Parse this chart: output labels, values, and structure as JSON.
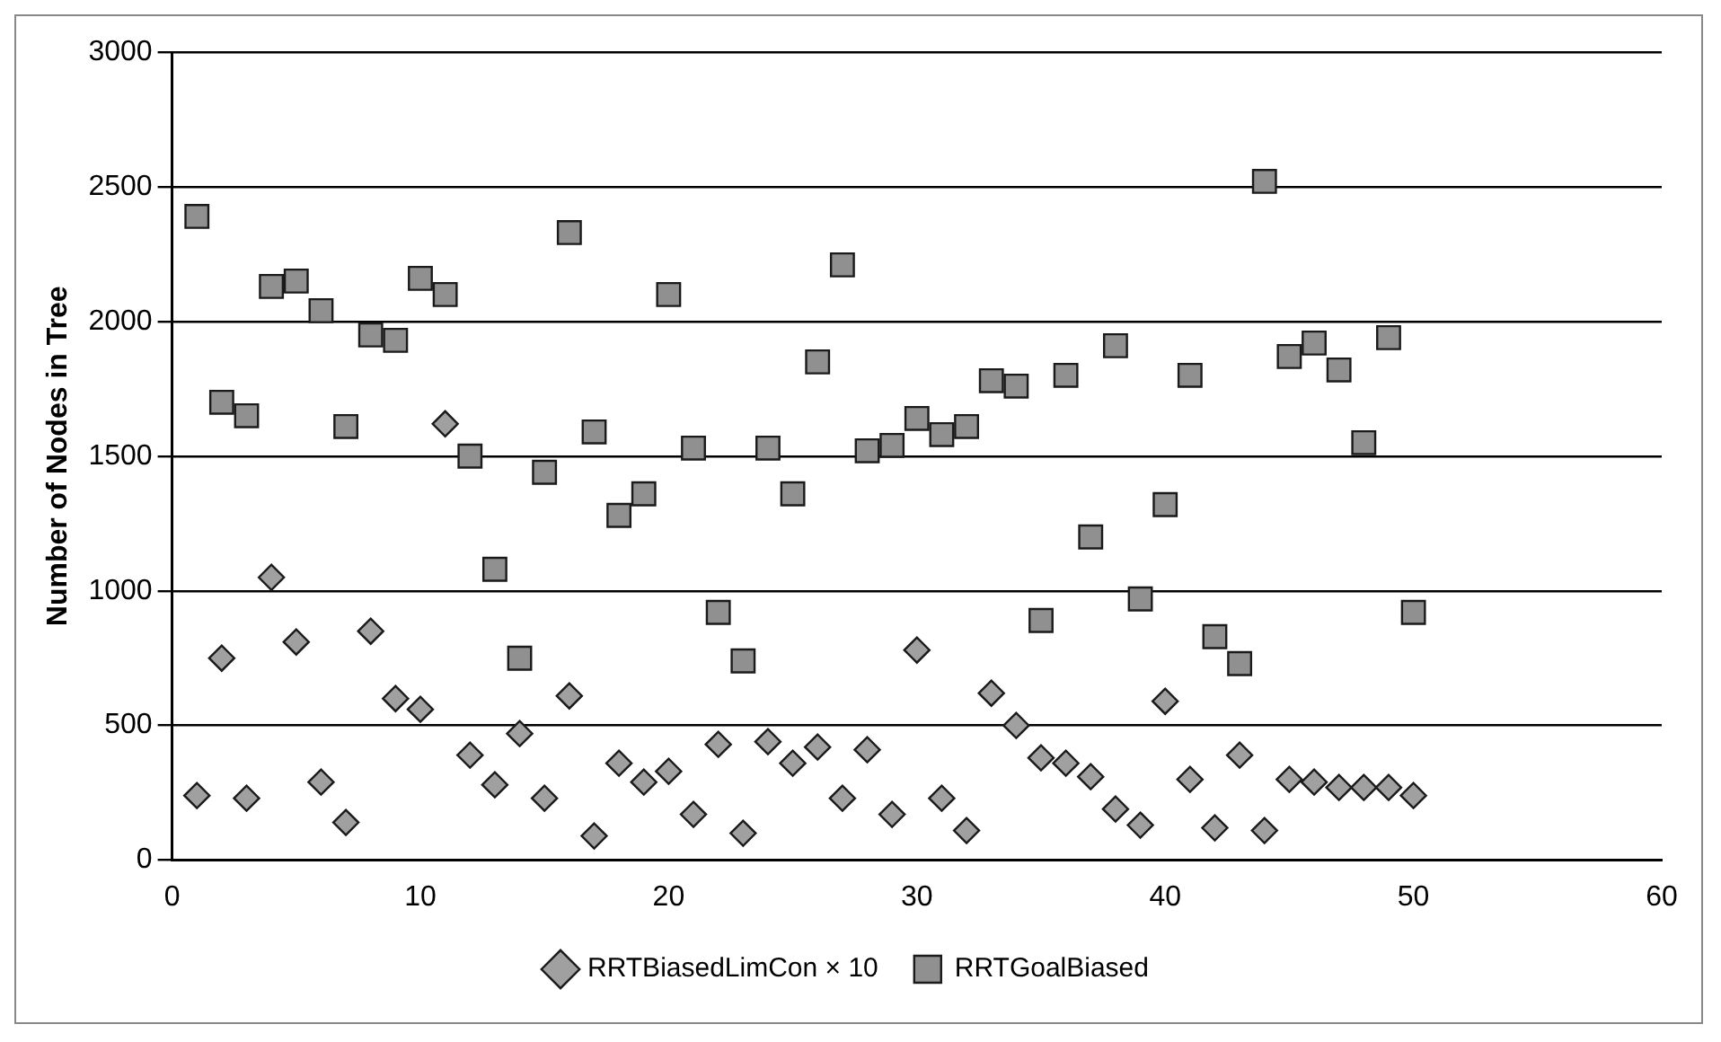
{
  "chart_data": {
    "type": "scatter",
    "ylabel": "Number of Nodes in Tree",
    "x": [
      1,
      2,
      3,
      4,
      5,
      6,
      7,
      8,
      9,
      10,
      11,
      12,
      13,
      14,
      15,
      16,
      17,
      18,
      19,
      20,
      21,
      22,
      23,
      24,
      25,
      26,
      27,
      28,
      29,
      30,
      31,
      32,
      33,
      34,
      35,
      36,
      37,
      38,
      39,
      40,
      41,
      42,
      43,
      44,
      45,
      46,
      47,
      48,
      49,
      50
    ],
    "series": [
      {
        "name": "RRTBiasedLimCon × 10",
        "color": "#a0a0a0",
        "marker": "diamond",
        "values": [
          240,
          750,
          230,
          1050,
          810,
          290,
          140,
          850,
          600,
          560,
          1620,
          390,
          280,
          470,
          230,
          610,
          90,
          360,
          290,
          330,
          170,
          430,
          100,
          440,
          360,
          420,
          230,
          410,
          170,
          780,
          230,
          110,
          620,
          500,
          380,
          360,
          310,
          190,
          130,
          590,
          300,
          120,
          390,
          110,
          300,
          290,
          270,
          270,
          270,
          240
        ]
      },
      {
        "name": "RRTGoalBiased",
        "color": "#909090",
        "marker": "square",
        "values": [
          2390,
          1700,
          1650,
          2130,
          2150,
          2040,
          1610,
          1950,
          1930,
          2160,
          2100,
          1500,
          1080,
          750,
          1440,
          2330,
          1590,
          1280,
          1360,
          2100,
          1530,
          920,
          740,
          1530,
          1360,
          1850,
          2210,
          1520,
          1540,
          1640,
          1580,
          1610,
          1780,
          1760,
          890,
          1800,
          1200,
          1910,
          970,
          1320,
          1800,
          830,
          730,
          2520,
          1870,
          1920,
          1820,
          1550,
          1940,
          920
        ]
      }
    ],
    "xlim": [
      0,
      60
    ],
    "xticks": [
      0,
      10,
      20,
      30,
      40,
      50,
      60
    ],
    "ylim": [
      0,
      3000
    ],
    "yticks": [
      0,
      500,
      1000,
      1500,
      2000,
      2500,
      3000
    ],
    "grid": "y",
    "legend": "bottom"
  }
}
